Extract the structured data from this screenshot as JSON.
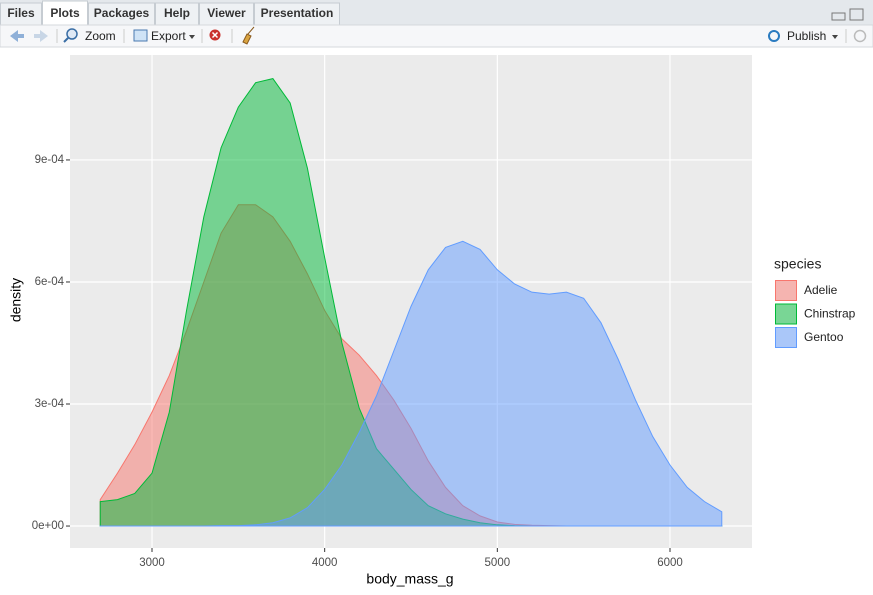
{
  "ui": {
    "tabs": [
      "Files",
      "Plots",
      "Packages",
      "Help",
      "Viewer",
      "Presentation"
    ],
    "toolbar": {
      "zoom": "Zoom",
      "export": "Export",
      "publish": "Publish"
    }
  },
  "chart_data": {
    "type": "area",
    "x_label": "body_mass_g",
    "y_label": "density",
    "legend_title": "species",
    "x": [
      2700,
      2800,
      2900,
      3000,
      3100,
      3200,
      3300,
      3400,
      3500,
      3600,
      3700,
      3800,
      3900,
      4000,
      4100,
      4200,
      4300,
      4400,
      4500,
      4600,
      4700,
      4800,
      4900,
      5000,
      5100,
      5200,
      5300,
      5400,
      5500,
      5600,
      5700,
      5800,
      5900,
      6000,
      6100,
      6200,
      6300
    ],
    "series": [
      {
        "name": "Adelie",
        "color": "#F8766D",
        "values": [
          6.5e-05,
          0.00013,
          0.0002,
          0.00028,
          0.00037,
          0.00048,
          0.0006,
          0.00072,
          0.00079,
          0.00079,
          0.00076,
          0.0007,
          0.00062,
          0.00053,
          0.00046,
          0.00042,
          0.00037,
          0.00031,
          0.00024,
          0.00016,
          9.5e-05,
          5e-05,
          2.5e-05,
          1e-05,
          4e-06,
          2e-06,
          1e-06,
          0,
          0,
          0,
          0,
          0,
          0,
          0,
          0,
          0,
          0
        ]
      },
      {
        "name": "Chinstrap",
        "color": "#00BA38",
        "values": [
          6e-05,
          6.5e-05,
          8e-05,
          0.00013,
          0.00028,
          0.00053,
          0.00076,
          0.00093,
          0.00103,
          0.00109,
          0.0011,
          0.00104,
          0.00088,
          0.00066,
          0.00045,
          0.00029,
          0.00019,
          0.00014,
          9e-05,
          5e-05,
          3e-05,
          1.7e-05,
          8e-06,
          3e-06,
          1e-06,
          0,
          0,
          0,
          0,
          0,
          0,
          0,
          0,
          0,
          0,
          0,
          0
        ]
      },
      {
        "name": "Gentoo",
        "color": "#619CFF",
        "values": [
          0,
          0,
          0,
          0,
          0,
          0,
          0,
          1e-06,
          1e-06,
          3e-06,
          8e-06,
          2e-05,
          4.5e-05,
          9e-05,
          0.00015,
          0.00023,
          0.00032,
          0.00043,
          0.00054,
          0.00063,
          0.000685,
          0.0007,
          0.00068,
          0.00063,
          0.000595,
          0.000575,
          0.00057,
          0.000575,
          0.00056,
          0.0005,
          0.00041,
          0.00031,
          0.00022,
          0.00015,
          9.5e-05,
          6e-05,
          3.5e-05
        ]
      }
    ],
    "xlim": [
      2525,
      6475
    ],
    "xticks": [
      3000,
      4000,
      5000,
      6000
    ],
    "ylim": [
      -5.4e-05,
      0.001158
    ],
    "yticks": [
      {
        "value": 0,
        "label": "0e+00"
      },
      {
        "value": 0.0003,
        "label": "3e-04"
      },
      {
        "value": 0.0006,
        "label": "6e-04"
      },
      {
        "value": 0.0009,
        "label": "9e-04"
      }
    ],
    "grid": true,
    "fill_opacity": 0.5
  }
}
